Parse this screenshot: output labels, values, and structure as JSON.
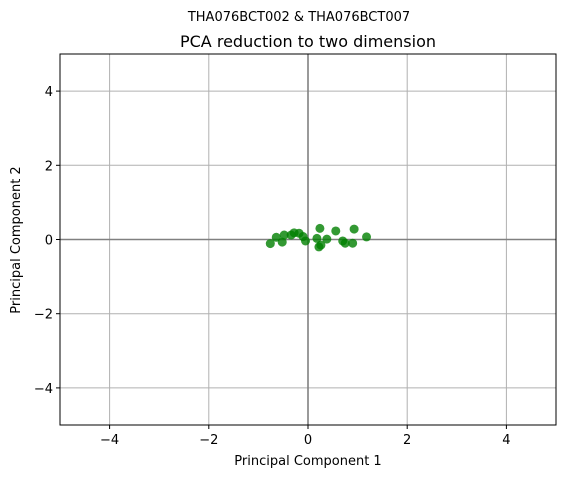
{
  "chart_data": {
    "type": "scatter",
    "suptitle": "THA076BCT002 & THA076BCT007",
    "title": "PCA reduction to two dimension",
    "xlabel": "Principal Component 1",
    "ylabel": "Principal Component 2",
    "xlim": [
      -5,
      5
    ],
    "ylim": [
      -5,
      5
    ],
    "xticks": [
      {
        "value": -4,
        "label": "−4"
      },
      {
        "value": -2,
        "label": "−2"
      },
      {
        "value": 0,
        "label": "0"
      },
      {
        "value": 2,
        "label": "2"
      },
      {
        "value": 4,
        "label": "4"
      }
    ],
    "yticks": [
      {
        "value": -4,
        "label": "−4"
      },
      {
        "value": -2,
        "label": "−2"
      },
      {
        "value": 0,
        "label": "0"
      },
      {
        "value": 2,
        "label": "2"
      },
      {
        "value": 4,
        "label": "4"
      }
    ],
    "grid": true,
    "zero_lines": true,
    "marker_color": "#008000",
    "series": [
      {
        "name": "",
        "points": [
          {
            "x": -0.76,
            "y": -0.11
          },
          {
            "x": -0.64,
            "y": 0.06
          },
          {
            "x": -0.52,
            "y": -0.07
          },
          {
            "x": -0.48,
            "y": 0.12
          },
          {
            "x": -0.34,
            "y": 0.12
          },
          {
            "x": -0.28,
            "y": 0.18
          },
          {
            "x": -0.18,
            "y": 0.17
          },
          {
            "x": -0.1,
            "y": 0.08
          },
          {
            "x": -0.05,
            "y": -0.04
          },
          {
            "x": 0.18,
            "y": 0.03
          },
          {
            "x": 0.24,
            "y": 0.3
          },
          {
            "x": 0.22,
            "y": -0.2
          },
          {
            "x": 0.26,
            "y": -0.15
          },
          {
            "x": 0.38,
            "y": 0.01
          },
          {
            "x": 0.56,
            "y": 0.23
          },
          {
            "x": 0.7,
            "y": -0.04
          },
          {
            "x": 0.75,
            "y": -0.1
          },
          {
            "x": 0.9,
            "y": -0.1
          },
          {
            "x": 0.93,
            "y": 0.28
          },
          {
            "x": 1.18,
            "y": 0.07
          }
        ]
      }
    ]
  }
}
